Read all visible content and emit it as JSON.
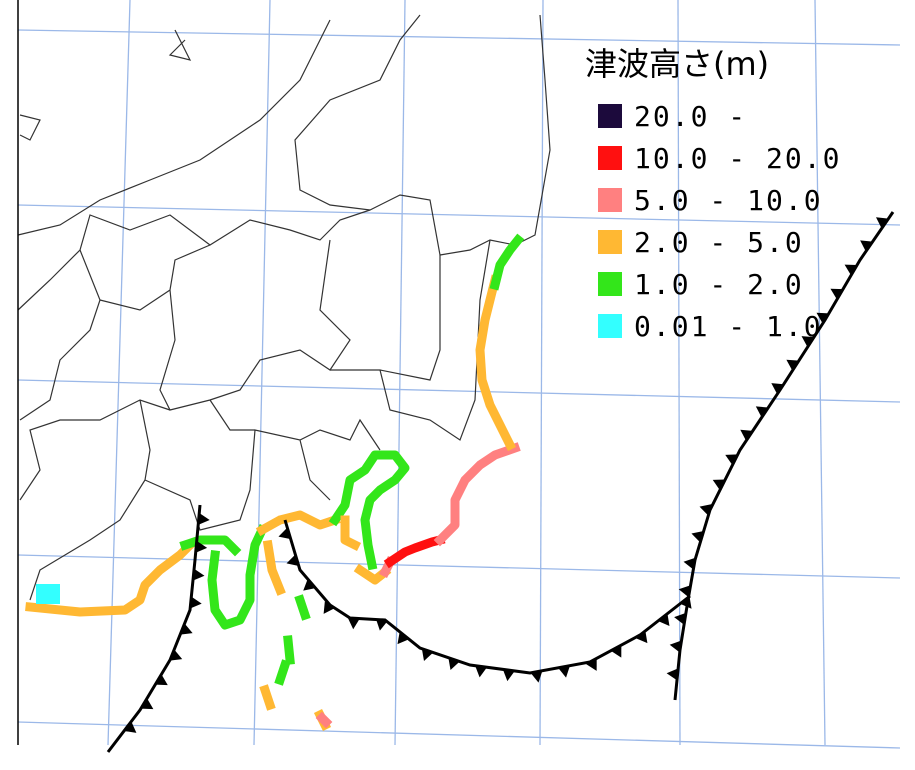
{
  "legend": {
    "title": "津波高さ(m)",
    "items": [
      {
        "label": "20.0 -",
        "color": "#1c0a3c"
      },
      {
        "label": "10.0 - 20.0",
        "color": "#ff1010"
      },
      {
        "label": "5.0  - 10.0",
        "color": "#ff8080"
      },
      {
        "label": "2.0  - 5.0",
        "color": "#ffb833"
      },
      {
        "label": "1.0  - 2.0",
        "color": "#33e61a"
      },
      {
        "label": "0.01 - 1.0",
        "color": "#33ffff"
      }
    ]
  }
}
